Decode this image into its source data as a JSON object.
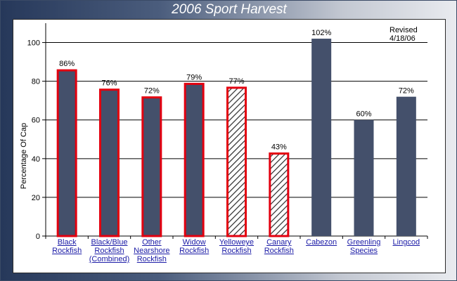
{
  "chart_data": {
    "type": "bar",
    "title": "2006 Sport Harvest",
    "annotation": "Revised 4/18/06",
    "ylabel": "Percentage Of Cap",
    "xlabel": "",
    "ylim": [
      0,
      110
    ],
    "yticks": [
      0,
      20,
      40,
      60,
      80,
      100
    ],
    "grid": true,
    "categories": [
      "Black\nRockfish",
      "Black/Blue\nRockfish\n(Combined)",
      "Other\nNearshore\nRockfish",
      "Widow\nRockfish",
      "Yelloweye\nRockfish",
      "Canary\nRockfish",
      "Cabezon",
      "Greenling\nSpecies",
      "Lingcod"
    ],
    "values": [
      86,
      76,
      72,
      79,
      77,
      43,
      102,
      60,
      72
    ],
    "value_labels": [
      "86%",
      "76%",
      "72%",
      "79%",
      "77%",
      "43%",
      "102%",
      "60%",
      "72%"
    ],
    "bar_styles": [
      "outlined",
      "outlined",
      "outlined",
      "outlined",
      "hatched",
      "hatched",
      "plain",
      "plain",
      "plain"
    ],
    "colors": {
      "bar_fill": "#44506b",
      "outline": "#e3000f",
      "hatch": "#2a2a2a",
      "link_text": "#1a1aa6"
    }
  }
}
